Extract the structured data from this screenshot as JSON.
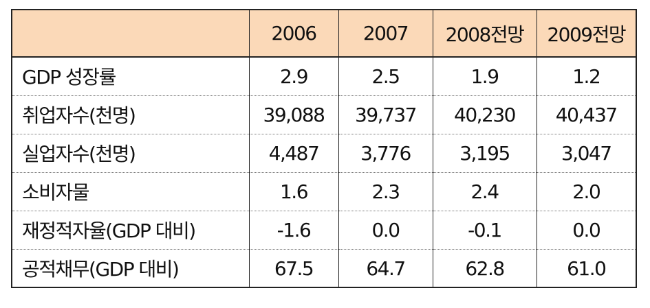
{
  "table": {
    "header": [
      "",
      "2006",
      "2007",
      "2008전망",
      "2009전망"
    ],
    "rows": [
      {
        "label": "GDP 성장률",
        "values": [
          "2.9",
          "2.5",
          "1.9",
          "1.2"
        ]
      },
      {
        "label": "취업자수(천명)",
        "values": [
          "39,088",
          "39,737",
          "40,230",
          "40,437"
        ]
      },
      {
        "label": "실업자수(천명)",
        "values": [
          "4,487",
          "3,776",
          "3,195",
          "3,047"
        ]
      },
      {
        "label": "소비자물",
        "values": [
          "1.6",
          "2.3",
          "2.4",
          "2.0"
        ]
      },
      {
        "label": "재정적자율(GDP 대비)",
        "values": [
          "-1.6",
          "0.0",
          "-0.1",
          "0.0"
        ]
      },
      {
        "label": "공적채무(GDP 대비)",
        "values": [
          "67.5",
          "64.7",
          "62.8",
          "61.0"
        ]
      }
    ]
  },
  "colors": {
    "header_background": "#fbd9b8",
    "border": "#222222"
  }
}
